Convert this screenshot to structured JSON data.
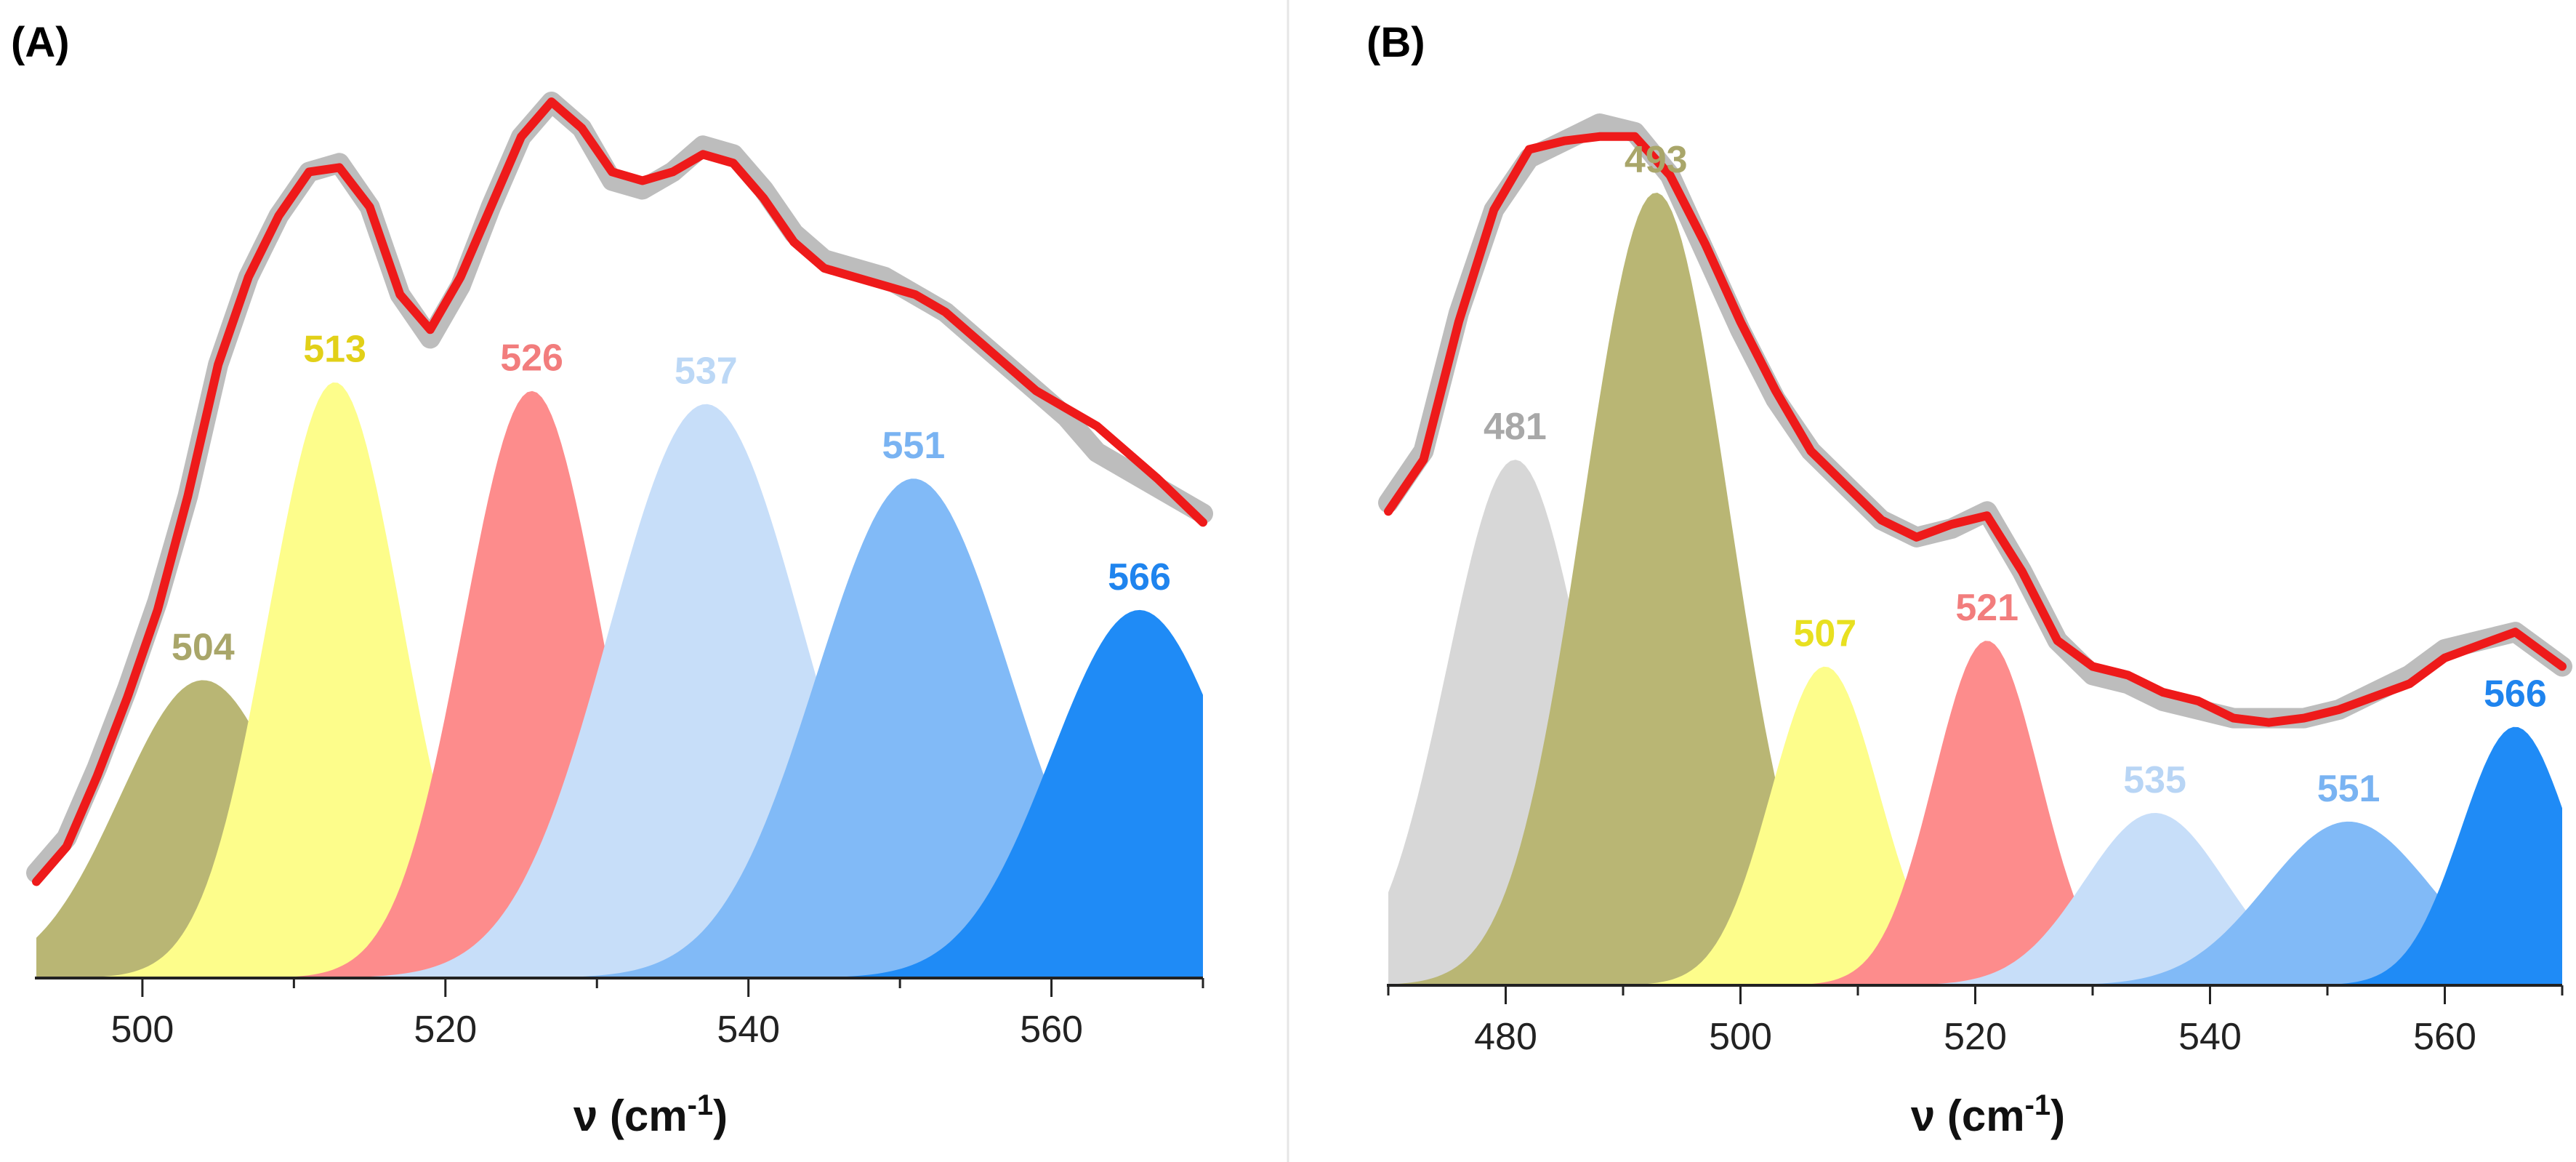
{
  "chart_data": [
    {
      "type": "area",
      "panel": "(A)",
      "xlabel": "ν (cm",
      "xlabel_sup": "-1",
      "xlabel_suffix": ")",
      "xlim": [
        493,
        570
      ],
      "ylim": [
        0,
        1.0
      ],
      "xticks": [
        500,
        520,
        540,
        560
      ],
      "xtick_labels": [
        "500",
        "520",
        "540",
        "560"
      ],
      "components": [
        {
          "label": "504",
          "center": 504,
          "height": 0.34,
          "sigma": 5.5,
          "color": "#b9b674",
          "label_color": "#a9a66a"
        },
        {
          "label": "513",
          "center": 512.7,
          "height": 0.68,
          "sigma": 4.4,
          "color": "#fdfd8b",
          "label_color": "#e2d018"
        },
        {
          "label": "526",
          "center": 525.7,
          "height": 0.67,
          "sigma": 4.5,
          "color": "#fd8c8c",
          "label_color": "#f27d7d"
        },
        {
          "label": "537",
          "center": 537.2,
          "height": 0.655,
          "sigma": 6.4,
          "color": "#c7def9",
          "label_color": "#bcd8f6"
        },
        {
          "label": "551",
          "center": 550.9,
          "height": 0.57,
          "sigma": 6.4,
          "color": "#81baf7",
          "label_color": "#79b3f2"
        },
        {
          "label": "566",
          "center": 565.8,
          "height": 0.42,
          "sigma": 5.8,
          "color": "#1f8bf6",
          "label_color": "#1f84ee"
        }
      ],
      "experimental_curve": {
        "x": [
          493,
          495,
          497,
          499,
          501,
          503,
          505,
          507,
          509,
          511,
          513,
          515,
          517,
          519,
          521,
          523,
          525,
          527,
          529,
          531,
          533,
          535,
          537,
          539,
          541,
          543,
          545,
          547,
          549,
          551,
          553,
          555,
          557,
          559,
          561,
          563,
          565,
          567,
          570
        ],
        "y": [
          0.12,
          0.16,
          0.24,
          0.33,
          0.43,
          0.55,
          0.7,
          0.8,
          0.87,
          0.92,
          0.93,
          0.88,
          0.78,
          0.73,
          0.79,
          0.88,
          0.96,
          1.0,
          0.97,
          0.91,
          0.9,
          0.92,
          0.95,
          0.94,
          0.9,
          0.85,
          0.82,
          0.81,
          0.8,
          0.78,
          0.76,
          0.73,
          0.7,
          0.67,
          0.64,
          0.6,
          0.58,
          0.56,
          0.53
        ]
      },
      "fit_curve": {
        "x": [
          493,
          495,
          497,
          499,
          501,
          503,
          505,
          507,
          509,
          511,
          513,
          515,
          517,
          519,
          521,
          523,
          525,
          527,
          529,
          531,
          533,
          535,
          537,
          539,
          541,
          543,
          545,
          547,
          549,
          551,
          553,
          555,
          557,
          559,
          561,
          563,
          565,
          567,
          570
        ],
        "y": [
          0.11,
          0.15,
          0.23,
          0.32,
          0.42,
          0.55,
          0.7,
          0.8,
          0.87,
          0.92,
          0.925,
          0.88,
          0.78,
          0.74,
          0.8,
          0.88,
          0.96,
          1.0,
          0.97,
          0.92,
          0.91,
          0.92,
          0.94,
          0.93,
          0.89,
          0.84,
          0.81,
          0.8,
          0.79,
          0.78,
          0.76,
          0.73,
          0.7,
          0.67,
          0.65,
          0.63,
          0.6,
          0.57,
          0.52
        ]
      }
    },
    {
      "type": "area",
      "panel": "(B)",
      "xlabel": "ν (cm",
      "xlabel_sup": "-1",
      "xlabel_suffix": ")",
      "xlim": [
        470,
        570
      ],
      "ylim": [
        0,
        1.0
      ],
      "xticks": [
        480,
        500,
        520,
        540,
        560
      ],
      "xtick_labels": [
        "480",
        "500",
        "520",
        "540",
        "560"
      ],
      "components": [
        {
          "label": "481",
          "center": 480.8,
          "height": 0.61,
          "sigma": 5.8,
          "color": "#d7d7d7",
          "label_color": "#a8a8a8"
        },
        {
          "label": "493",
          "center": 492.8,
          "height": 0.92,
          "sigma": 6.2,
          "color": "#b9b674",
          "label_color": "#a9a66a"
        },
        {
          "label": "507",
          "center": 507.2,
          "height": 0.37,
          "sigma": 4.6,
          "color": "#fdfd8b",
          "label_color": "#e8e020"
        },
        {
          "label": "521",
          "center": 521.0,
          "height": 0.4,
          "sigma": 4.5,
          "color": "#fd8c8c",
          "label_color": "#f27d7d"
        },
        {
          "label": "535",
          "center": 535.3,
          "height": 0.2,
          "sigma": 6.0,
          "color": "#c7def9",
          "label_color": "#b8d5f5"
        },
        {
          "label": "551",
          "center": 551.8,
          "height": 0.19,
          "sigma": 7.0,
          "color": "#81baf7",
          "label_color": "#79b3f2"
        },
        {
          "label": "566",
          "center": 566.0,
          "height": 0.3,
          "sigma": 4.6,
          "color": "#1f8bf6",
          "label_color": "#1f84ee"
        }
      ],
      "experimental_curve": {
        "x": [
          470,
          473,
          476,
          479,
          482,
          485,
          488,
          491,
          494,
          497,
          500,
          503,
          506,
          509,
          512,
          515,
          518,
          521,
          524,
          527,
          530,
          533,
          536,
          539,
          542,
          545,
          548,
          551,
          554,
          557,
          560,
          563,
          566,
          570
        ],
        "y": [
          0.56,
          0.62,
          0.78,
          0.9,
          0.96,
          0.98,
          1.0,
          0.99,
          0.94,
          0.85,
          0.76,
          0.68,
          0.62,
          0.58,
          0.54,
          0.52,
          0.53,
          0.55,
          0.48,
          0.4,
          0.36,
          0.35,
          0.33,
          0.32,
          0.31,
          0.31,
          0.31,
          0.32,
          0.34,
          0.36,
          0.39,
          0.4,
          0.41,
          0.37
        ]
      },
      "fit_curve": {
        "x": [
          470,
          473,
          476,
          479,
          482,
          485,
          488,
          491,
          494,
          497,
          500,
          503,
          506,
          509,
          512,
          515,
          518,
          521,
          524,
          527,
          530,
          533,
          536,
          539,
          542,
          545,
          548,
          551,
          554,
          557,
          560,
          563,
          566,
          570
        ],
        "y": [
          0.55,
          0.61,
          0.77,
          0.9,
          0.97,
          0.98,
          0.985,
          0.985,
          0.94,
          0.86,
          0.77,
          0.69,
          0.62,
          0.58,
          0.54,
          0.52,
          0.535,
          0.545,
          0.48,
          0.4,
          0.37,
          0.36,
          0.34,
          0.33,
          0.31,
          0.305,
          0.31,
          0.32,
          0.335,
          0.35,
          0.38,
          0.395,
          0.41,
          0.37
        ]
      }
    }
  ]
}
